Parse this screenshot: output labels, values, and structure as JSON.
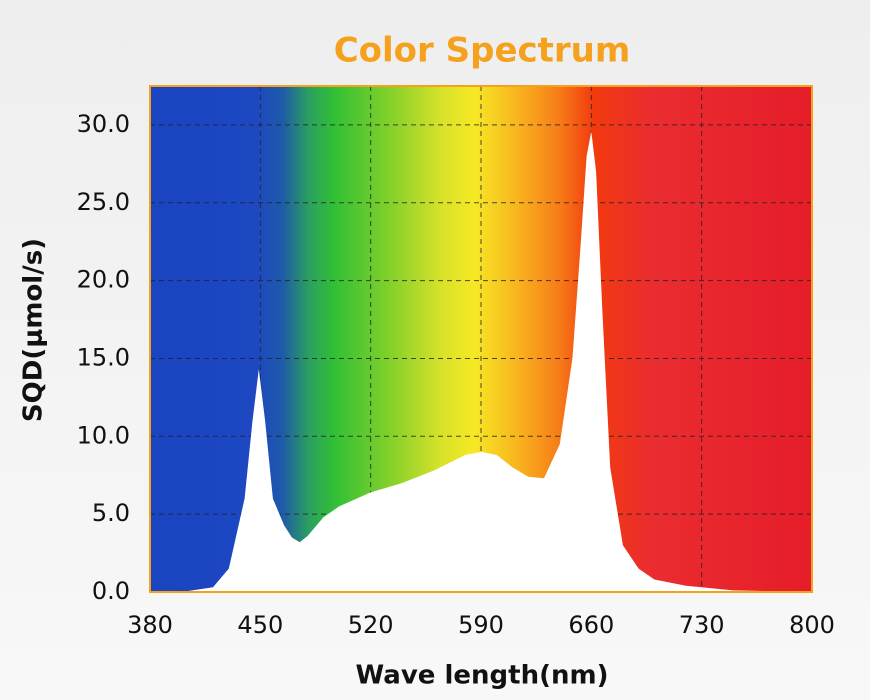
{
  "chart_data": {
    "type": "area",
    "title": "Color Spectrum",
    "x_label": "Wave length(nm)",
    "y_label": "SQD(μmol/s)",
    "x": [
      380,
      400,
      420,
      430,
      440,
      445,
      449,
      453,
      458,
      465,
      470,
      475,
      480,
      490,
      500,
      520,
      540,
      560,
      580,
      590,
      600,
      610,
      620,
      630,
      640,
      648,
      653,
      657,
      660,
      663,
      667,
      672,
      680,
      690,
      700,
      720,
      750,
      800
    ],
    "values": [
      0,
      0,
      0.3,
      1.5,
      6,
      11,
      14.3,
      11,
      6,
      4.3,
      3.5,
      3.2,
      3.6,
      4.8,
      5.5,
      6.4,
      7.0,
      7.8,
      8.8,
      9.0,
      8.8,
      8.0,
      7.4,
      7.3,
      9.5,
      15,
      22,
      28,
      29.6,
      27,
      18,
      8,
      3,
      1.5,
      0.8,
      0.4,
      0.1,
      0
    ],
    "color": "#ffffff",
    "xlim": [
      380,
      800
    ],
    "xticks": [
      380,
      450,
      520,
      590,
      660,
      730,
      800
    ],
    "ylim": [
      0,
      32.5
    ],
    "yticks": [
      {
        "value": 0,
        "label": "0.0"
      },
      {
        "value": 5,
        "label": "5.0"
      },
      {
        "value": 10,
        "label": "10.0"
      },
      {
        "value": 15,
        "label": "15.0"
      },
      {
        "value": 20,
        "label": "20.0"
      },
      {
        "value": 25,
        "label": "25.0"
      },
      {
        "value": 30,
        "label": "30.0"
      }
    ],
    "grid": true
  }
}
